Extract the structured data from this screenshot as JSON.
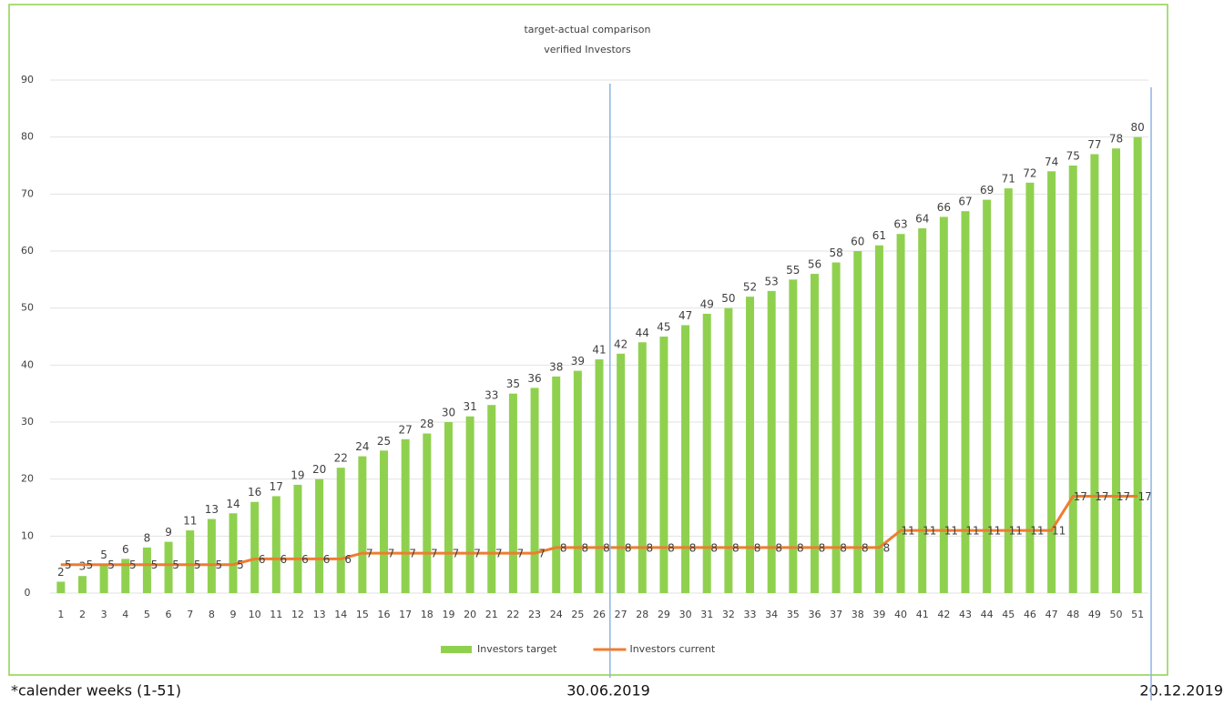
{
  "chart_data": {
    "type": "bar-line",
    "title": "target-actual comparison",
    "subtitle": "verified Investors",
    "categories": [
      "1",
      "2",
      "3",
      "4",
      "5",
      "6",
      "7",
      "8",
      "9",
      "10",
      "11",
      "12",
      "13",
      "14",
      "15",
      "16",
      "17",
      "18",
      "19",
      "20",
      "21",
      "22",
      "23",
      "24",
      "25",
      "26",
      "27",
      "28",
      "29",
      "30",
      "31",
      "32",
      "33",
      "34",
      "35",
      "36",
      "37",
      "38",
      "39",
      "40",
      "41",
      "42",
      "43",
      "44",
      "45",
      "46",
      "47",
      "48",
      "49",
      "50",
      "51"
    ],
    "series": [
      {
        "name": "Investors target",
        "type": "bar",
        "color": "#8fd14f",
        "values": [
          2,
          3,
          5,
          6,
          8,
          9,
          11,
          13,
          14,
          16,
          17,
          19,
          20,
          22,
          24,
          25,
          27,
          28,
          30,
          31,
          33,
          35,
          36,
          38,
          39,
          41,
          42,
          44,
          45,
          47,
          49,
          50,
          52,
          53,
          55,
          56,
          58,
          60,
          61,
          63,
          64,
          66,
          67,
          69,
          71,
          72,
          74,
          75,
          77,
          78,
          80
        ]
      },
      {
        "name": "Investors current",
        "type": "line",
        "color": "#ed7d31",
        "values": [
          5,
          5,
          5,
          5,
          5,
          5,
          5,
          5,
          5,
          6,
          6,
          6,
          6,
          6,
          7,
          7,
          7,
          7,
          7,
          7,
          7,
          7,
          7,
          8,
          8,
          8,
          8,
          8,
          8,
          8,
          8,
          8,
          8,
          8,
          8,
          8,
          8,
          8,
          8,
          11,
          11,
          11,
          11,
          11,
          11,
          11,
          11,
          17,
          17,
          17,
          17
        ]
      }
    ],
    "ylim": [
      0,
      90
    ],
    "yticks": [
      0,
      10,
      20,
      30,
      40,
      50,
      60,
      70,
      80,
      90
    ],
    "grid": true,
    "legend": "bottom",
    "annotations": [
      "*calender weeks (1-51)",
      "30.06.2019",
      "20.12.2019"
    ]
  }
}
